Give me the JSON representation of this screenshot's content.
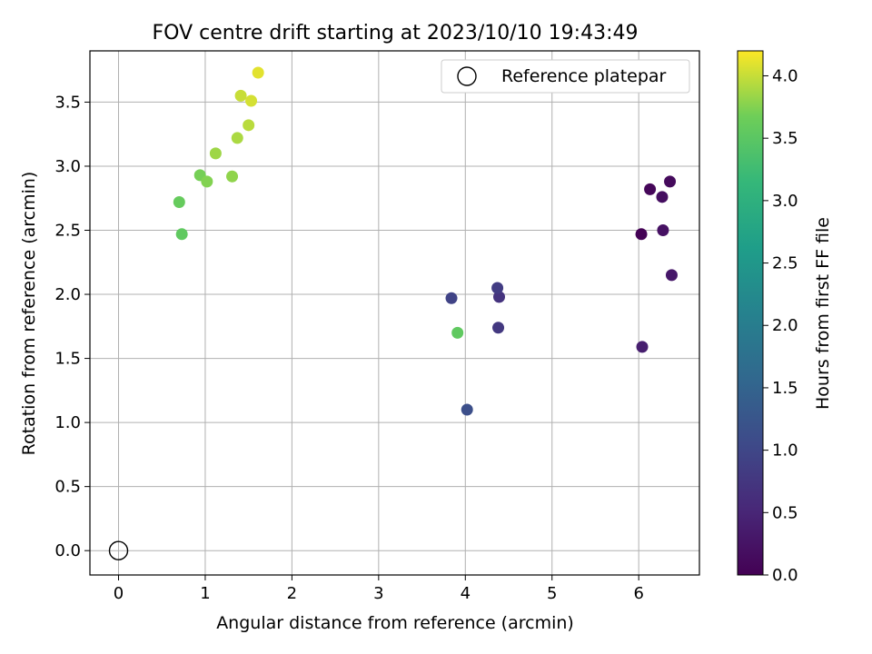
{
  "chart_data": {
    "type": "scatter",
    "title": "FOV centre drift starting at 2023/10/10 19:43:49",
    "xlabel": "Angular distance from reference (arcmin)",
    "ylabel": "Rotation from reference (arcmin)",
    "xlim": [
      -0.33,
      6.7
    ],
    "ylim": [
      -0.19,
      3.9
    ],
    "xticks": [
      "0",
      "1",
      "2",
      "3",
      "4",
      "5",
      "6"
    ],
    "yticks": [
      "0.0",
      "0.5",
      "1.0",
      "1.5",
      "2.0",
      "2.5",
      "3.0",
      "3.5"
    ],
    "grid": true,
    "legend": {
      "placement": "top-right",
      "entries": [
        "Reference platepar"
      ]
    },
    "reference_point": {
      "x": 0.0,
      "y": 0.0
    },
    "colorbar": {
      "label": "Hours from first FF file",
      "colormap": "viridis",
      "range": [
        0.0,
        4.2
      ],
      "ticks": [
        "0.0",
        "0.5",
        "1.0",
        "1.5",
        "2.0",
        "2.5",
        "3.0",
        "3.5",
        "4.0"
      ]
    },
    "points": [
      {
        "x": 6.03,
        "y": 2.47,
        "hours": 0.02
      },
      {
        "x": 6.13,
        "y": 2.82,
        "hours": 0.08
      },
      {
        "x": 6.36,
        "y": 2.88,
        "hours": 0.12
      },
      {
        "x": 6.27,
        "y": 2.76,
        "hours": 0.17
      },
      {
        "x": 6.28,
        "y": 2.5,
        "hours": 0.22
      },
      {
        "x": 6.38,
        "y": 2.15,
        "hours": 0.3
      },
      {
        "x": 6.04,
        "y": 1.59,
        "hours": 0.4
      },
      {
        "x": 4.39,
        "y": 1.98,
        "hours": 0.7
      },
      {
        "x": 4.38,
        "y": 1.74,
        "hours": 0.78
      },
      {
        "x": 4.37,
        "y": 2.05,
        "hours": 0.85
      },
      {
        "x": 3.84,
        "y": 1.97,
        "hours": 0.95
      },
      {
        "x": 4.02,
        "y": 1.1,
        "hours": 1.15
      },
      {
        "x": 3.91,
        "y": 1.7,
        "hours": 3.55
      },
      {
        "x": 0.73,
        "y": 2.47,
        "hours": 3.55
      },
      {
        "x": 0.7,
        "y": 2.72,
        "hours": 3.6
      },
      {
        "x": 0.94,
        "y": 2.93,
        "hours": 3.7
      },
      {
        "x": 1.02,
        "y": 2.88,
        "hours": 3.75
      },
      {
        "x": 1.31,
        "y": 2.92,
        "hours": 3.8
      },
      {
        "x": 1.12,
        "y": 3.1,
        "hours": 3.85
      },
      {
        "x": 1.37,
        "y": 3.22,
        "hours": 3.9
      },
      {
        "x": 1.5,
        "y": 3.32,
        "hours": 3.95
      },
      {
        "x": 1.41,
        "y": 3.55,
        "hours": 4.0
      },
      {
        "x": 1.53,
        "y": 3.51,
        "hours": 4.05
      },
      {
        "x": 1.61,
        "y": 3.73,
        "hours": 4.1
      }
    ]
  }
}
